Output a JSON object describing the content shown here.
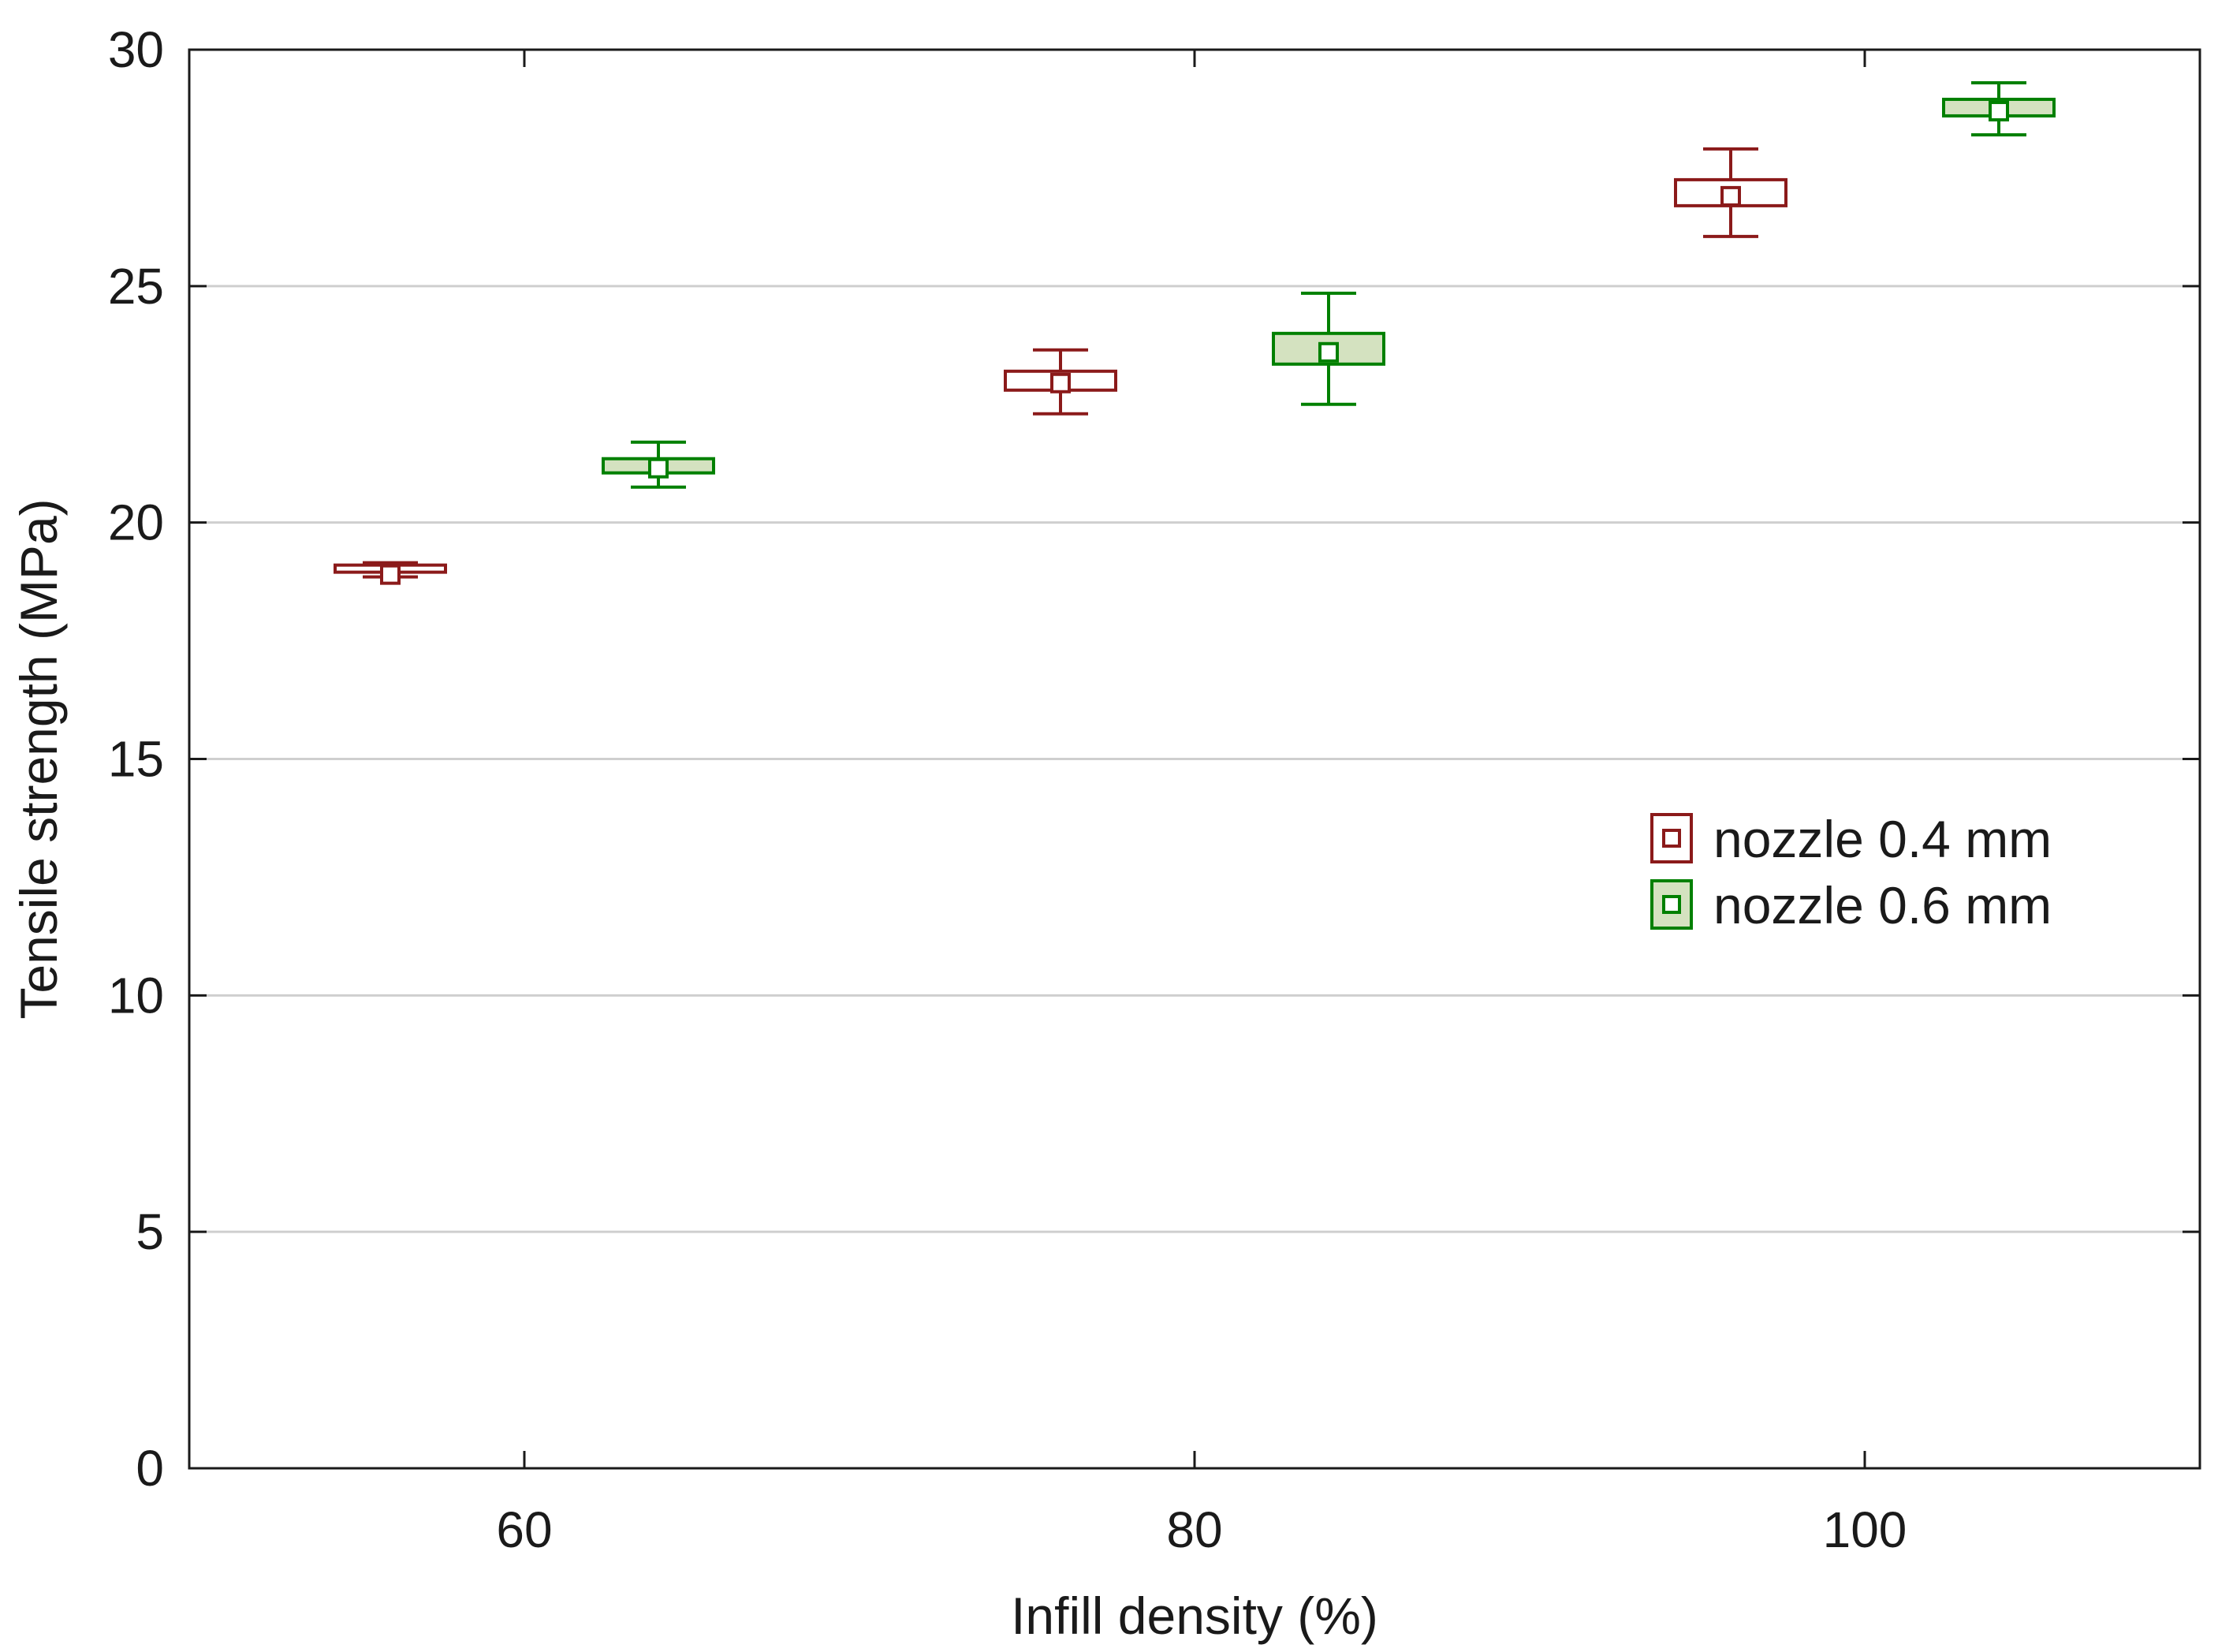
{
  "chart_data": {
    "type": "box",
    "title": "",
    "xlabel": "Infill density (%)",
    "ylabel": "Tensile strength (MPa)",
    "xlim": [
      50,
      110
    ],
    "ylim": [
      0,
      30
    ],
    "xticks": [
      "60",
      "80",
      "100"
    ],
    "yticks": [
      "0",
      "5",
      "10",
      "15",
      "20",
      "25",
      "30"
    ],
    "grid": "horizontal",
    "legend_position": "right",
    "categories": [
      "60",
      "80",
      "100"
    ],
    "series": [
      {
        "name": "nozzle 0.4 mm",
        "color": "#8b1a1a",
        "fill": "#ffffff",
        "points": [
          {
            "x": 56,
            "mean": 18.9,
            "box_low": 18.95,
            "box_high": 19.1,
            "whisker_low": 18.85,
            "whisker_high": 19.15
          },
          {
            "x": 76,
            "mean": 22.95,
            "box_low": 22.8,
            "box_high": 23.2,
            "whisker_low": 22.3,
            "whisker_high": 23.65
          },
          {
            "x": 96,
            "mean": 26.9,
            "box_low": 26.7,
            "box_high": 27.25,
            "whisker_low": 26.05,
            "whisker_high": 27.9
          }
        ]
      },
      {
        "name": "nozzle 0.6 mm",
        "color": "#008000",
        "fill": "#d4e2c0",
        "points": [
          {
            "x": 64,
            "mean": 21.15,
            "box_low": 21.05,
            "box_high": 21.35,
            "whisker_low": 20.75,
            "whisker_high": 21.7
          },
          {
            "x": 84,
            "mean": 23.6,
            "box_low": 23.35,
            "box_high": 24.0,
            "whisker_low": 22.5,
            "whisker_high": 24.85
          },
          {
            "x": 104,
            "mean": 28.7,
            "box_low": 28.6,
            "box_high": 28.95,
            "whisker_low": 28.2,
            "whisker_high": 29.3
          }
        ]
      }
    ]
  }
}
